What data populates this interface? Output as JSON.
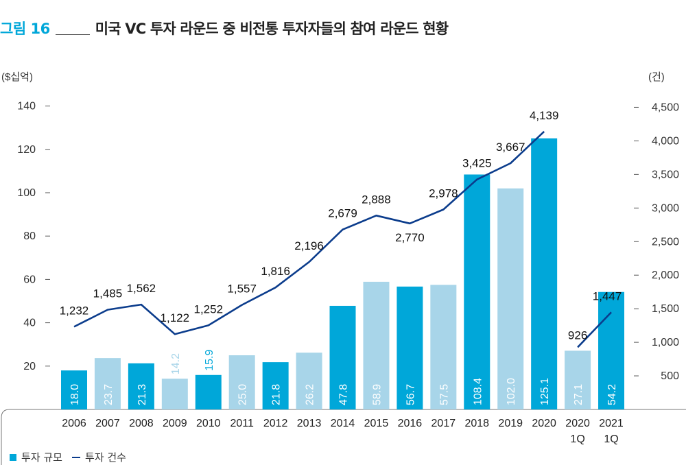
{
  "figure": {
    "number": "그림 16",
    "title": "미국 VC 투자 라운드 중 비전통 투자자들의 참여 라운드 현황"
  },
  "colors": {
    "dark_bar": "#00a7d9",
    "light_bar": "#a8d5e9",
    "line": "#0b3c8c",
    "accent": "#00a7d9"
  },
  "legend": {
    "bar_label": "투자 규모",
    "line_label": "투자 건수"
  },
  "chart_data": {
    "type": "bar",
    "title": "",
    "left_unit": "($십억)",
    "right_unit": "(건)",
    "categories": [
      [
        "2006"
      ],
      [
        "2007"
      ],
      [
        "2008"
      ],
      [
        "2009"
      ],
      [
        "2010"
      ],
      [
        "2011"
      ],
      [
        "2012"
      ],
      [
        "2013"
      ],
      [
        "2014"
      ],
      [
        "2015"
      ],
      [
        "2016"
      ],
      [
        "2017"
      ],
      [
        "2018"
      ],
      [
        "2019"
      ],
      [
        "2020"
      ],
      [
        "2020",
        "1Q"
      ],
      [
        "2021",
        "1Q"
      ]
    ],
    "ylim_left": [
      0,
      140
    ],
    "yticks_left": [
      20,
      40,
      60,
      80,
      100,
      120,
      140
    ],
    "ylim_right": [
      0,
      4500
    ],
    "yticks_right": [
      "500",
      "1,000",
      "1,500",
      "2,000",
      "2,500",
      "3,000",
      "3,500",
      "4,000",
      "4,500"
    ],
    "yticks_right_values": [
      500,
      1000,
      1500,
      2000,
      2500,
      3000,
      3500,
      4000,
      4500
    ],
    "series": [
      {
        "name": "투자 규모",
        "type": "bar",
        "values": [
          18.0,
          23.7,
          21.3,
          14.2,
          15.9,
          25.0,
          21.8,
          26.2,
          47.8,
          58.9,
          56.7,
          57.5,
          108.4,
          102.0,
          125.1,
          27.1,
          54.2
        ],
        "labels": [
          "18.0",
          "23.7",
          "21.3",
          "14.2",
          "15.9",
          "25.0",
          "21.8",
          "26.2",
          "47.8",
          "58.9",
          "56.7",
          "57.5",
          "108.4",
          "102.0",
          "125.1",
          "27.1",
          "54.2"
        ],
        "shade": [
          "dark",
          "light",
          "dark",
          "light",
          "dark",
          "light",
          "dark",
          "light",
          "dark",
          "light",
          "dark",
          "light",
          "dark",
          "light",
          "dark",
          "light",
          "dark"
        ]
      },
      {
        "name": "투자 건수",
        "type": "line",
        "values": [
          1232,
          1485,
          1562,
          1122,
          1252,
          1557,
          1816,
          2196,
          2679,
          2888,
          2770,
          2978,
          3425,
          3667,
          4139,
          926,
          1447
        ],
        "labels": [
          "1,232",
          "1,485",
          "1,562",
          "1,122",
          "1,252",
          "1,557",
          "1,816",
          "2,196",
          "2,679",
          "2,888",
          "2,770",
          "2,978",
          "3,425",
          "3,667",
          "4,139",
          "926",
          "1,447"
        ],
        "segments": [
          [
            0,
            14
          ],
          [
            15,
            16
          ]
        ]
      }
    ],
    "grid": false,
    "legend_position": "bottom-left"
  }
}
